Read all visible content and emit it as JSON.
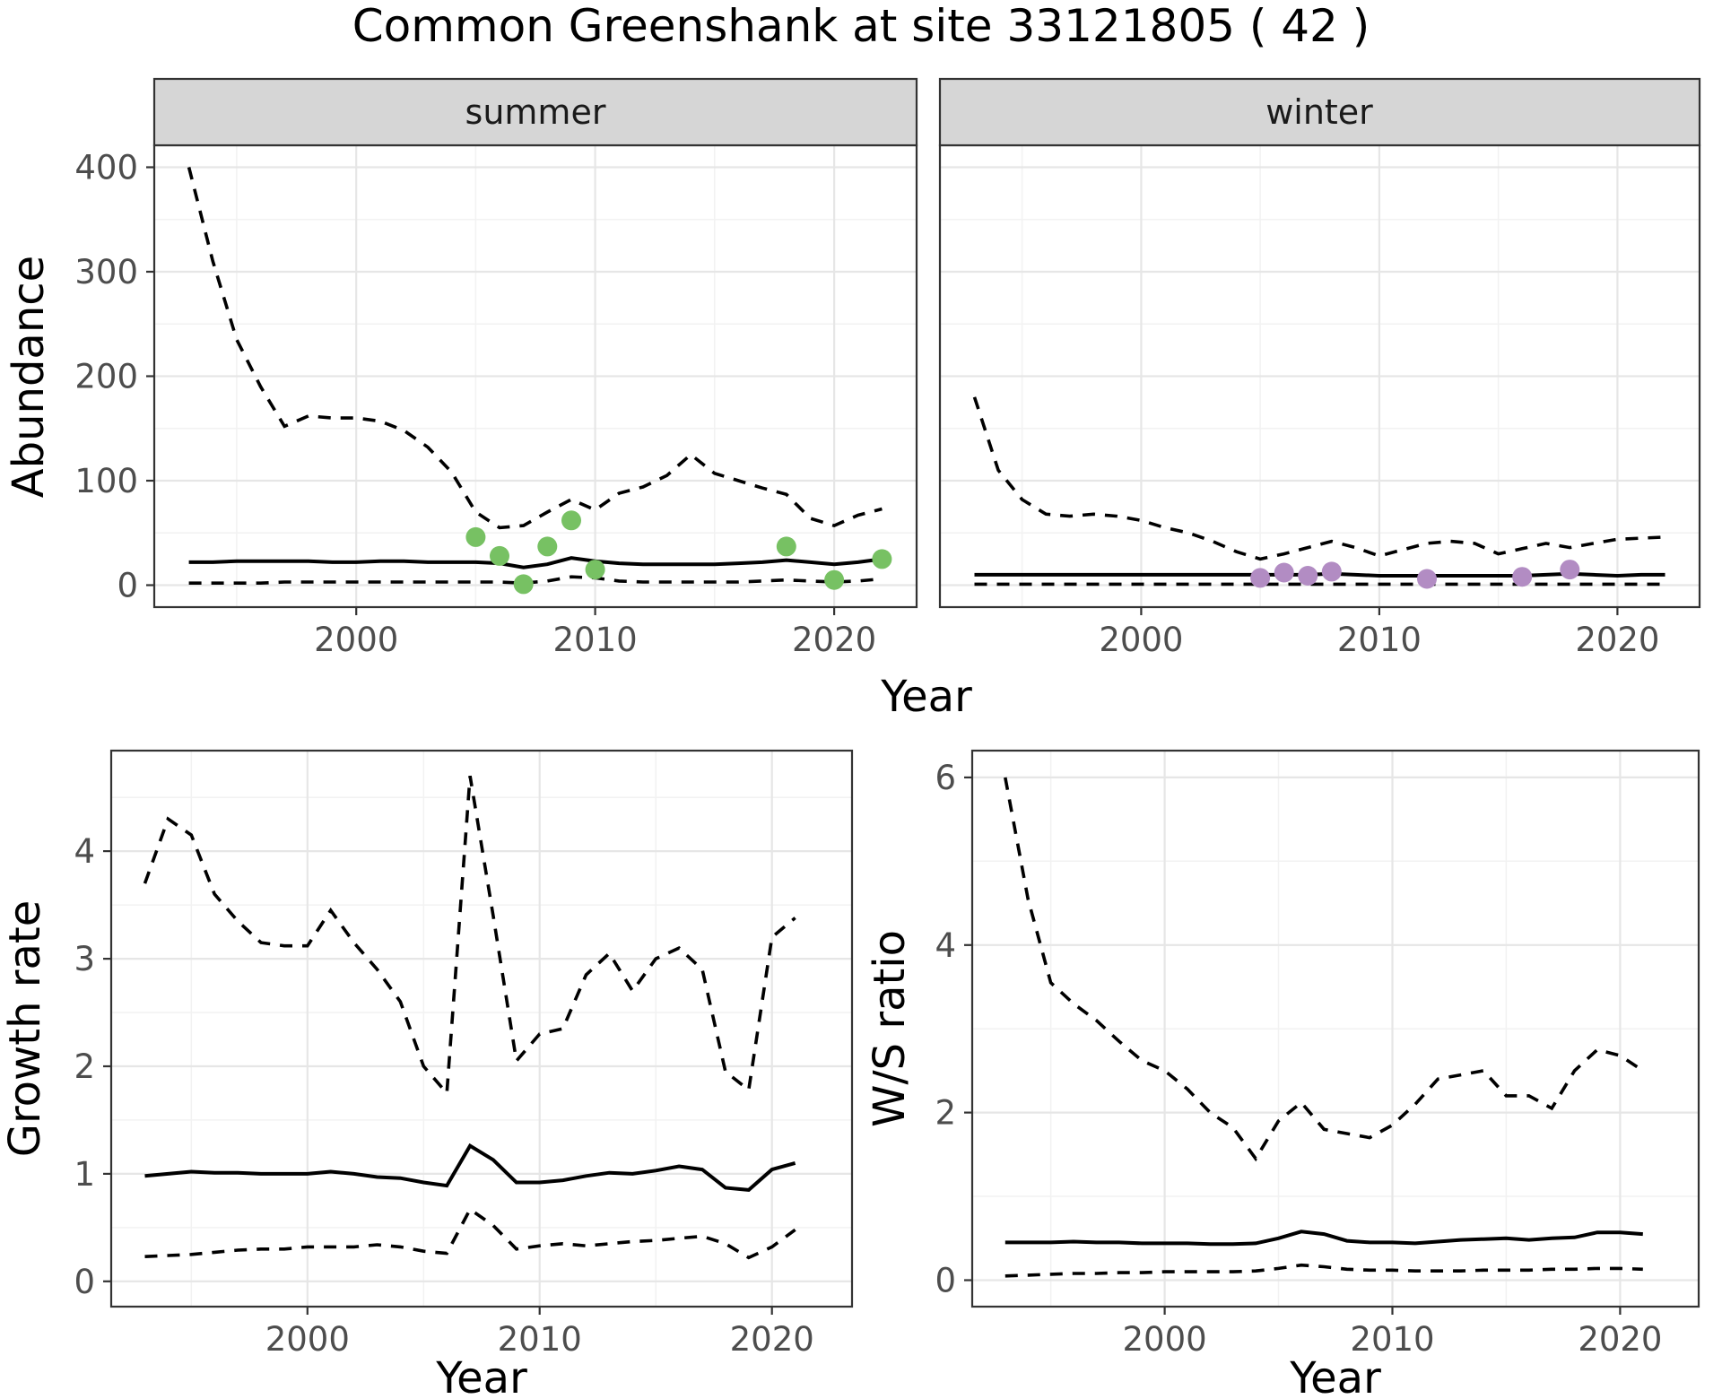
{
  "title": "Common Greenshank at site 33121805 ( 42 )",
  "labels": {
    "y_abundance": "Abundance",
    "y_growth": "Growth rate",
    "y_ws": "W/S ratio",
    "x_year": "Year",
    "strip_summer": "summer",
    "strip_winter": "winter"
  },
  "colors": {
    "line": "#000000",
    "summer_points": "#77c163",
    "winter_points": "#b28cc3",
    "strip_bg": "#d6d6d6",
    "strip_border": "#333333",
    "panel_border": "#333333",
    "panel_bg": "#ffffff",
    "grid_major": "#e6e6e6",
    "grid_minor": "#f2f2f2",
    "tick_label": "#4d4d4d"
  },
  "chart_data": [
    {
      "id": "abundance_summer",
      "type": "line",
      "facet_label": "summer",
      "ylabel": "Abundance",
      "xlabel": "Year",
      "xlim": [
        1991.55,
        2023.45
      ],
      "ylim": [
        -21,
        421
      ],
      "xticks": [
        2000,
        2010,
        2020
      ],
      "xtick_labels": [
        "2000",
        "2010",
        "2020"
      ],
      "xminor": [
        1995,
        2005,
        2015
      ],
      "yticks": [
        0,
        100,
        200,
        300,
        400
      ],
      "ytick_labels": [
        "0",
        "100",
        "200",
        "300",
        "400"
      ],
      "yminor": [
        50,
        150,
        250,
        350
      ],
      "show_ytick_labels": true,
      "x_years": [
        1993,
        1994,
        1995,
        1996,
        1997,
        1998,
        1999,
        2000,
        2001,
        2002,
        2003,
        2004,
        2005,
        2006,
        2007,
        2008,
        2009,
        2010,
        2011,
        2012,
        2013,
        2014,
        2015,
        2016,
        2017,
        2018,
        2019,
        2020,
        2021,
        2022
      ],
      "series": [
        {
          "name": "upper-95ci",
          "style": "dashed",
          "values": [
            400,
            310,
            235,
            190,
            152,
            162,
            160,
            160,
            157,
            148,
            132,
            108,
            70,
            55,
            57,
            70,
            82,
            72,
            88,
            94,
            105,
            125,
            107,
            100,
            93,
            87,
            64,
            57,
            67,
            73
          ]
        },
        {
          "name": "estimate",
          "style": "solid",
          "values": [
            22,
            22,
            23,
            23,
            23,
            23,
            22,
            22,
            23,
            23,
            22,
            22,
            22,
            21,
            17,
            20,
            26,
            23,
            21,
            20,
            20,
            20,
            20,
            21,
            22,
            24,
            22,
            20,
            22,
            25
          ]
        },
        {
          "name": "lower-95ci",
          "style": "dashed",
          "values": [
            2,
            2,
            2,
            2,
            3,
            3,
            3,
            3,
            3,
            3,
            3,
            3,
            3,
            3,
            2,
            4,
            8,
            7,
            4,
            3,
            3,
            3,
            3,
            3,
            4,
            5,
            4,
            3,
            4,
            6
          ]
        }
      ],
      "points": {
        "name": "observed-count-point",
        "color_key": "summer_points",
        "x": [
          2005,
          2006,
          2007,
          2008,
          2009,
          2010,
          2018,
          2020,
          2022
        ],
        "y": [
          46,
          28,
          1,
          37,
          62,
          15,
          37,
          5,
          25
        ]
      }
    },
    {
      "id": "abundance_winter",
      "type": "line",
      "facet_label": "winter",
      "ylabel": "Abundance",
      "xlabel": "Year",
      "xlim": [
        1991.55,
        2023.45
      ],
      "ylim": [
        -21,
        421
      ],
      "xticks": [
        2000,
        2010,
        2020
      ],
      "xtick_labels": [
        "2000",
        "2010",
        "2020"
      ],
      "xminor": [
        1995,
        2005,
        2015
      ],
      "yticks": [
        0,
        100,
        200,
        300,
        400
      ],
      "ytick_labels": [
        "0",
        "100",
        "200",
        "300",
        "400"
      ],
      "yminor": [
        50,
        150,
        250,
        350
      ],
      "show_ytick_labels": false,
      "x_years": [
        1993,
        1994,
        1995,
        1996,
        1997,
        1998,
        1999,
        2000,
        2001,
        2002,
        2003,
        2004,
        2005,
        2006,
        2007,
        2008,
        2009,
        2010,
        2011,
        2012,
        2013,
        2014,
        2015,
        2016,
        2017,
        2018,
        2019,
        2020,
        2021,
        2022
      ],
      "series": [
        {
          "name": "upper-95ci",
          "style": "dashed",
          "values": [
            180,
            110,
            82,
            68,
            66,
            68,
            66,
            62,
            55,
            50,
            42,
            32,
            25,
            30,
            36,
            42,
            36,
            28,
            34,
            40,
            42,
            40,
            30,
            35,
            40,
            36,
            40,
            44,
            45,
            46
          ]
        },
        {
          "name": "estimate",
          "style": "solid",
          "values": [
            10,
            10,
            10,
            10,
            10,
            10,
            10,
            10,
            10,
            10,
            10,
            10,
            10,
            10,
            10,
            11,
            10,
            9,
            9,
            9,
            9,
            9,
            9,
            9,
            10,
            11,
            10,
            9,
            10,
            10
          ]
        },
        {
          "name": "lower-95ci",
          "style": "dashed",
          "values": [
            1,
            1,
            1,
            1,
            1,
            1,
            1,
            1,
            1,
            1,
            1,
            1,
            1,
            1,
            1,
            1,
            1,
            1,
            1,
            1,
            1,
            1,
            1,
            1,
            1,
            1,
            1,
            1,
            1,
            1
          ]
        }
      ],
      "points": {
        "name": "observed-count-point",
        "color_key": "winter_points",
        "x": [
          2005,
          2006,
          2007,
          2008,
          2012,
          2016,
          2018
        ],
        "y": [
          7,
          12,
          9,
          13,
          6,
          8,
          15
        ]
      }
    },
    {
      "id": "growth_rate",
      "type": "line",
      "facet_label": "",
      "ylabel": "Growth rate",
      "xlabel": "Year",
      "xlim": [
        1991.55,
        2023.45
      ],
      "ylim": [
        -0.235,
        4.935
      ],
      "xticks": [
        2000,
        2010,
        2020
      ],
      "xtick_labels": [
        "2000",
        "2010",
        "2020"
      ],
      "xminor": [
        1995,
        2005,
        2015
      ],
      "yticks": [
        0,
        1,
        2,
        3,
        4
      ],
      "ytick_labels": [
        "0",
        "1",
        "2",
        "3",
        "4"
      ],
      "yminor": [
        0.5,
        1.5,
        2.5,
        3.5,
        4.5
      ],
      "show_ytick_labels": true,
      "x_years": [
        1993,
        1994,
        1995,
        1996,
        1997,
        1998,
        1999,
        2000,
        2001,
        2002,
        2003,
        2004,
        2005,
        2006,
        2007,
        2008,
        2009,
        2010,
        2011,
        2012,
        2013,
        2014,
        2015,
        2016,
        2017,
        2018,
        2019,
        2020,
        2021
      ],
      "series": [
        {
          "name": "upper-95ci",
          "style": "dashed",
          "values": [
            3.7,
            4.3,
            4.15,
            3.6,
            3.35,
            3.15,
            3.12,
            3.12,
            3.45,
            3.15,
            2.9,
            2.6,
            2.0,
            1.75,
            4.7,
            3.4,
            2.05,
            2.3,
            2.35,
            2.85,
            3.05,
            2.7,
            3.0,
            3.1,
            2.9,
            1.95,
            1.78,
            3.2,
            3.38
          ]
        },
        {
          "name": "estimate",
          "style": "solid",
          "values": [
            0.98,
            1.0,
            1.02,
            1.01,
            1.01,
            1.0,
            1.0,
            1.0,
            1.02,
            1.0,
            0.97,
            0.96,
            0.92,
            0.89,
            1.26,
            1.13,
            0.92,
            0.92,
            0.94,
            0.98,
            1.01,
            1.0,
            1.03,
            1.07,
            1.04,
            0.87,
            0.85,
            1.04,
            1.1
          ]
        },
        {
          "name": "lower-95ci",
          "style": "dashed",
          "values": [
            0.23,
            0.24,
            0.25,
            0.27,
            0.29,
            0.3,
            0.3,
            0.32,
            0.32,
            0.32,
            0.34,
            0.32,
            0.28,
            0.26,
            0.67,
            0.52,
            0.3,
            0.33,
            0.35,
            0.33,
            0.35,
            0.37,
            0.38,
            0.4,
            0.42,
            0.35,
            0.22,
            0.32,
            0.48
          ]
        }
      ],
      "points": null
    },
    {
      "id": "ws_ratio",
      "type": "line",
      "facet_label": "",
      "ylabel": "W/S ratio",
      "xlabel": "Year",
      "xlim": [
        1991.55,
        2023.45
      ],
      "ylim": [
        -0.316,
        6.32
      ],
      "xticks": [
        2000,
        2010,
        2020
      ],
      "xtick_labels": [
        "2000",
        "2010",
        "2020"
      ],
      "xminor": [
        1995,
        2005,
        2015
      ],
      "yticks": [
        0,
        2,
        4,
        6
      ],
      "ytick_labels": [
        "0",
        "2",
        "4",
        "6"
      ],
      "yminor": [
        1,
        3,
        5
      ],
      "show_ytick_labels": true,
      "x_years": [
        1993,
        1994,
        1995,
        1996,
        1997,
        1998,
        1999,
        2000,
        2001,
        2002,
        2003,
        2004,
        2005,
        2006,
        2007,
        2008,
        2009,
        2010,
        2011,
        2012,
        2013,
        2014,
        2015,
        2016,
        2017,
        2018,
        2019,
        2020,
        2021
      ],
      "series": [
        {
          "name": "upper-95ci",
          "style": "dashed",
          "values": [
            6.0,
            4.55,
            3.55,
            3.3,
            3.1,
            2.85,
            2.62,
            2.5,
            2.28,
            2.0,
            1.82,
            1.45,
            1.9,
            2.12,
            1.8,
            1.75,
            1.7,
            1.85,
            2.1,
            2.4,
            2.45,
            2.5,
            2.2,
            2.2,
            2.05,
            2.5,
            2.75,
            2.68,
            2.5
          ]
        },
        {
          "name": "estimate",
          "style": "solid",
          "values": [
            0.45,
            0.45,
            0.45,
            0.46,
            0.45,
            0.45,
            0.44,
            0.44,
            0.44,
            0.43,
            0.43,
            0.44,
            0.5,
            0.58,
            0.55,
            0.47,
            0.45,
            0.45,
            0.44,
            0.46,
            0.48,
            0.49,
            0.5,
            0.48,
            0.5,
            0.51,
            0.57,
            0.57,
            0.55
          ]
        },
        {
          "name": "lower-95ci",
          "style": "dashed",
          "values": [
            0.05,
            0.06,
            0.07,
            0.08,
            0.08,
            0.09,
            0.09,
            0.1,
            0.1,
            0.1,
            0.1,
            0.11,
            0.14,
            0.18,
            0.16,
            0.13,
            0.12,
            0.12,
            0.11,
            0.11,
            0.11,
            0.12,
            0.12,
            0.12,
            0.13,
            0.13,
            0.14,
            0.14,
            0.13
          ]
        }
      ],
      "points": null
    }
  ]
}
